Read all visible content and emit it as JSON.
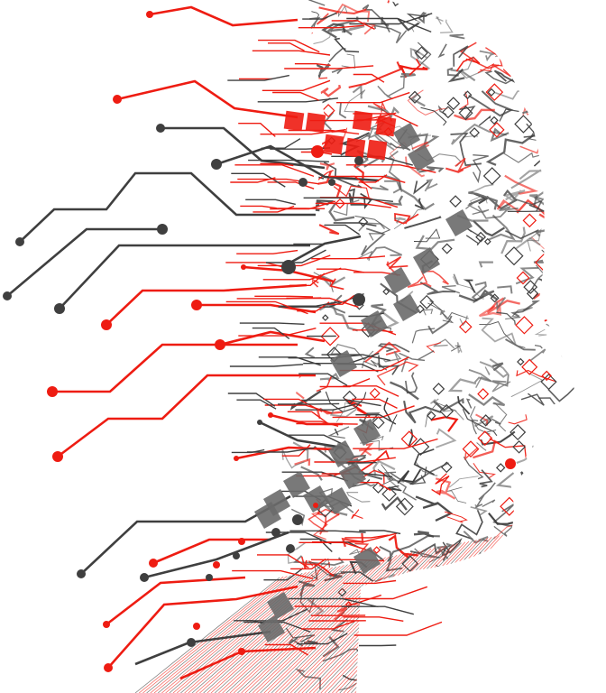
{
  "image": {
    "subject": "circuit-head-illustration",
    "colors": {
      "background": "#ffffff",
      "accent_red": "#ee1c12",
      "dark_gray": "#3f3f3f",
      "mid_gray": "#6a6a6a"
    }
  }
}
